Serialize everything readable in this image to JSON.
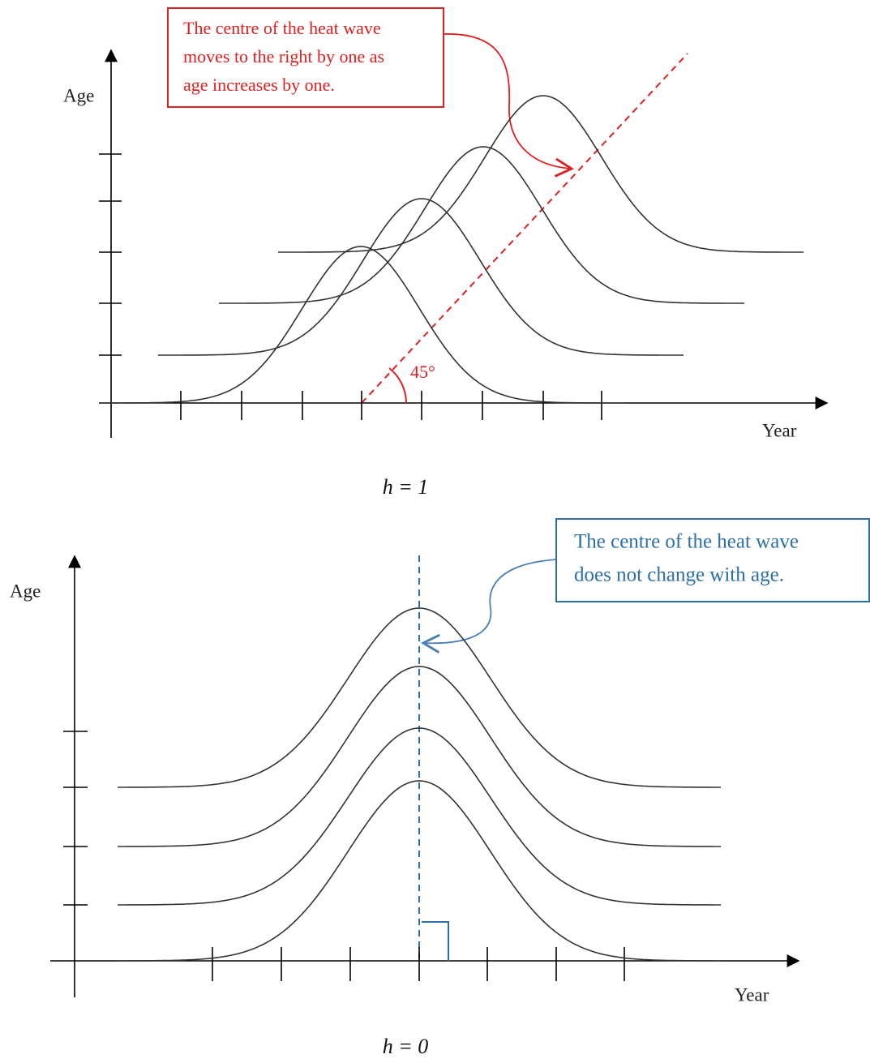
{
  "panels": [
    {
      "annotation": [
        "The centre of the heat wave",
        "moves to the right by one as",
        "age increases by one."
      ],
      "y_label": "Age",
      "x_label": "Year",
      "angle_label": "45°",
      "caption": "h = 1"
    },
    {
      "annotation": [
        "The centre of the heat wave",
        "does not change with age."
      ],
      "y_label": "Age",
      "x_label": "Year",
      "caption": "h = 0"
    }
  ]
}
